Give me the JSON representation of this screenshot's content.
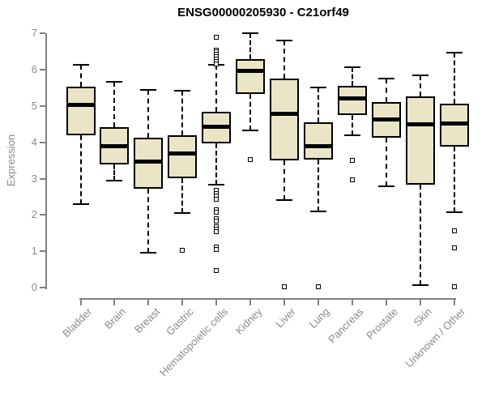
{
  "title": "ENSG00000205930 - C21orf49",
  "chart_data": {
    "type": "boxplot",
    "title": "ENSG00000205930 - C21orf49",
    "xlabel": "",
    "ylabel": "Expression",
    "ylim": [
      0,
      7
    ],
    "yticks": [
      0,
      1,
      2,
      3,
      4,
      5,
      6,
      7
    ],
    "grid": false,
    "legend": null,
    "categories": [
      "Bladder",
      "Brain",
      "Breast",
      "Gastric",
      "Hematopoietic cells",
      "Kidney",
      "Liver",
      "Lung",
      "Pancreas",
      "Prostate",
      "Skin",
      "Unknown / Other"
    ],
    "boxes": [
      {
        "category": "Bladder",
        "whisker_low": 2.3,
        "q1": 4.2,
        "median": 5.03,
        "q3": 5.53,
        "whisker_high": 6.15,
        "outliers": []
      },
      {
        "category": "Brain",
        "whisker_low": 2.95,
        "q1": 3.4,
        "median": 3.9,
        "q3": 4.42,
        "whisker_high": 5.67,
        "outliers": []
      },
      {
        "category": "Breast",
        "whisker_low": 0.97,
        "q1": 2.72,
        "median": 3.48,
        "q3": 4.13,
        "whisker_high": 5.45,
        "outliers": []
      },
      {
        "category": "Gastric",
        "whisker_low": 2.05,
        "q1": 3.01,
        "median": 3.7,
        "q3": 4.2,
        "whisker_high": 5.43,
        "outliers": [
          1.03
        ]
      },
      {
        "category": "Hematopoietic cells",
        "whisker_low": 2.83,
        "q1": 3.98,
        "median": 4.43,
        "q3": 4.84,
        "whisker_high": 6.14,
        "outliers": [
          6.9,
          6.55,
          6.5,
          6.44,
          6.37,
          6.3,
          6.23,
          6.17,
          2.68,
          2.6,
          2.52,
          2.44,
          2.15,
          2.08,
          1.9,
          1.82,
          1.68,
          1.6,
          1.53,
          1.12,
          1.06,
          0.48
        ]
      },
      {
        "category": "Kidney",
        "whisker_low": 4.33,
        "q1": 5.34,
        "median": 5.97,
        "q3": 6.29,
        "whisker_high": 7.0,
        "outliers": [
          3.52
        ]
      },
      {
        "category": "Liver",
        "whisker_low": 2.42,
        "q1": 3.5,
        "median": 4.78,
        "q3": 5.75,
        "whisker_high": 6.82,
        "outliers": [
          0.02
        ]
      },
      {
        "category": "Lung",
        "whisker_low": 2.1,
        "q1": 3.52,
        "median": 3.89,
        "q3": 4.55,
        "whisker_high": 5.52,
        "outliers": [
          0.02
        ]
      },
      {
        "category": "Pancreas",
        "whisker_low": 4.2,
        "q1": 4.75,
        "median": 5.21,
        "q3": 5.56,
        "whisker_high": 6.08,
        "outliers": [
          3.5,
          2.96
        ]
      },
      {
        "category": "Prostate",
        "whisker_low": 2.79,
        "q1": 4.14,
        "median": 4.64,
        "q3": 5.12,
        "whisker_high": 5.77,
        "outliers": []
      },
      {
        "category": "Skin",
        "whisker_low": 0.06,
        "q1": 2.84,
        "median": 4.5,
        "q3": 5.26,
        "whisker_high": 5.86,
        "outliers": []
      },
      {
        "category": "Unknown / Other",
        "whisker_low": 2.07,
        "q1": 3.88,
        "median": 4.52,
        "q3": 5.06,
        "whisker_high": 6.47,
        "outliers": [
          1.56,
          1.1,
          0.02
        ]
      }
    ]
  },
  "colors": {
    "box_fill": "#EBE5C7",
    "box_border": "#000000",
    "median": "#000000",
    "axis": "#808080",
    "tick_label": "#8A8A8A",
    "title": "#000000",
    "background": "#FFFFFF"
  }
}
